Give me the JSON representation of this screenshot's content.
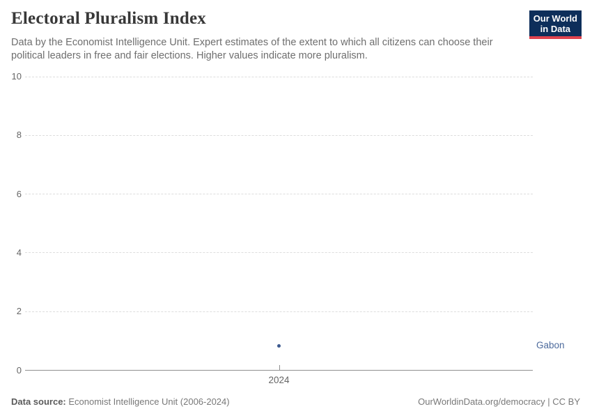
{
  "header": {
    "title": "Electoral Pluralism Index",
    "subtitle": "Data by the Economist Intelligence Unit. Expert estimates of the extent to which all citizens can choose their political leaders in free and fair elections. Higher values indicate more pluralism.",
    "logo": {
      "line1": "Our World",
      "line2": "in Data"
    }
  },
  "footer": {
    "source_label": "Data source:",
    "source_text": " Economist Intelligence Unit (2006-2024)",
    "attribution": "OurWorldinData.org/democracy | CC BY"
  },
  "chart_data": {
    "type": "scatter",
    "title": "Electoral Pluralism Index",
    "xlabel": "",
    "ylabel": "",
    "ylim": [
      0,
      10
    ],
    "yticks": [
      0,
      2,
      4,
      6,
      8,
      10
    ],
    "xticks": [
      "2024"
    ],
    "grid": "horizontal-dashed",
    "legend_position": "entity-label-right",
    "series": [
      {
        "name": "Gabon",
        "x": [
          2024
        ],
        "y": [
          0.83
        ]
      }
    ]
  },
  "colors": {
    "series_blue": "#3d5a8f",
    "entity_label_blue": "#4c6a9c",
    "logo_bg": "#0d2e5a",
    "logo_red": "#e0434e",
    "grid": "#dddddd",
    "axis_line": "#8f8f8f",
    "tick_text": "#666666",
    "title_text": "#383838",
    "subtitle_text": "#6e6e6e",
    "footer_text": "#787878"
  }
}
